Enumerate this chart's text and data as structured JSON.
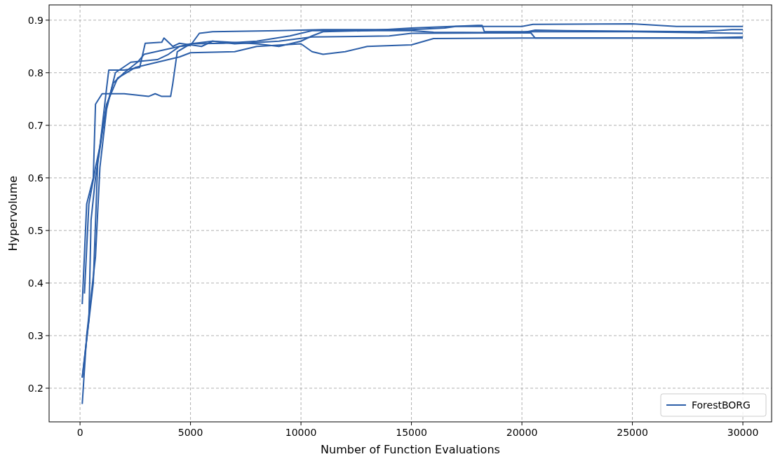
{
  "chart_data": {
    "type": "line",
    "xlabel": "Number of Function Evaluations",
    "ylabel": "Hypervolume",
    "xlim": [
      -1400,
      31300
    ],
    "ylim": [
      0.136,
      0.929
    ],
    "xticks": [
      0,
      5000,
      10000,
      15000,
      20000,
      25000,
      30000
    ],
    "yticks": [
      0.2,
      0.3,
      0.4,
      0.5,
      0.6,
      0.7,
      0.8,
      0.9
    ],
    "grid": true,
    "legend": "bottom right",
    "line_style": "solid",
    "series": [
      {
        "name": "ForestBORG",
        "color": "#2b5ea8",
        "x": [
          100,
          400,
          500,
          700,
          1200,
          1700,
          2500,
          3500,
          4500,
          5000,
          7000,
          8000,
          10000,
          10500,
          11000,
          12000,
          13000,
          15000,
          16000,
          20000,
          30000
        ],
        "values": [
          0.22,
          0.33,
          0.52,
          0.6,
          0.74,
          0.79,
          0.81,
          0.82,
          0.83,
          0.838,
          0.84,
          0.85,
          0.855,
          0.84,
          0.835,
          0.84,
          0.85,
          0.853,
          0.865,
          0.866,
          0.866
        ]
      },
      {
        "color": "#2b5ea8",
        "x": [
          100,
          300,
          600,
          700,
          1000,
          2000,
          3100,
          3400,
          3700,
          4100,
          4200,
          4400,
          5000,
          6000,
          7000,
          9000,
          10500,
          14000,
          15000,
          20400,
          20600,
          28000,
          30000
        ],
        "values": [
          0.36,
          0.55,
          0.6,
          0.74,
          0.76,
          0.76,
          0.755,
          0.76,
          0.755,
          0.755,
          0.78,
          0.84,
          0.855,
          0.86,
          0.855,
          0.86,
          0.868,
          0.87,
          0.875,
          0.876,
          0.866,
          0.866,
          0.868
        ]
      },
      {
        "color": "#2b5ea8",
        "x": [
          100,
          300,
          700,
          900,
          1200,
          1600,
          2300,
          3500,
          4000,
          4500,
          5000,
          5400,
          6000,
          9000,
          11000,
          15000,
          16500,
          17000,
          20000,
          20500,
          25000,
          27000,
          30000
        ],
        "values": [
          0.17,
          0.3,
          0.45,
          0.62,
          0.73,
          0.8,
          0.82,
          0.825,
          0.835,
          0.85,
          0.852,
          0.875,
          0.878,
          0.88,
          0.882,
          0.882,
          0.885,
          0.888,
          0.888,
          0.892,
          0.893,
          0.888,
          0.888
        ]
      },
      {
        "color": "#2b5ea8",
        "x": [
          200,
          400,
          700,
          900,
          1200,
          1300,
          2000,
          2700,
          2950,
          3700,
          3800,
          4200,
          4500,
          5500,
          6000,
          8000,
          9000,
          10000,
          10500,
          11000,
          13000,
          15000,
          18000,
          18200,
          18300,
          25000,
          30000
        ],
        "values": [
          0.38,
          0.55,
          0.62,
          0.66,
          0.77,
          0.805,
          0.805,
          0.81,
          0.856,
          0.858,
          0.866,
          0.85,
          0.856,
          0.85,
          0.86,
          0.855,
          0.85,
          0.86,
          0.87,
          0.878,
          0.88,
          0.885,
          0.89,
          0.89,
          0.878,
          0.878,
          0.875
        ]
      },
      {
        "color": "#2b5ea8",
        "x": [
          100,
          600,
          800,
          1000,
          1200,
          1500,
          2000,
          2600,
          2900,
          4500,
          5000,
          6500,
          8000,
          9500,
          10500,
          15000,
          16000,
          20000,
          20600,
          22000,
          28000,
          29500,
          30000
        ],
        "values": [
          0.22,
          0.4,
          0.63,
          0.69,
          0.735,
          0.78,
          0.8,
          0.82,
          0.835,
          0.85,
          0.855,
          0.856,
          0.86,
          0.87,
          0.88,
          0.88,
          0.877,
          0.876,
          0.881,
          0.88,
          0.878,
          0.882,
          0.882
        ]
      }
    ]
  }
}
